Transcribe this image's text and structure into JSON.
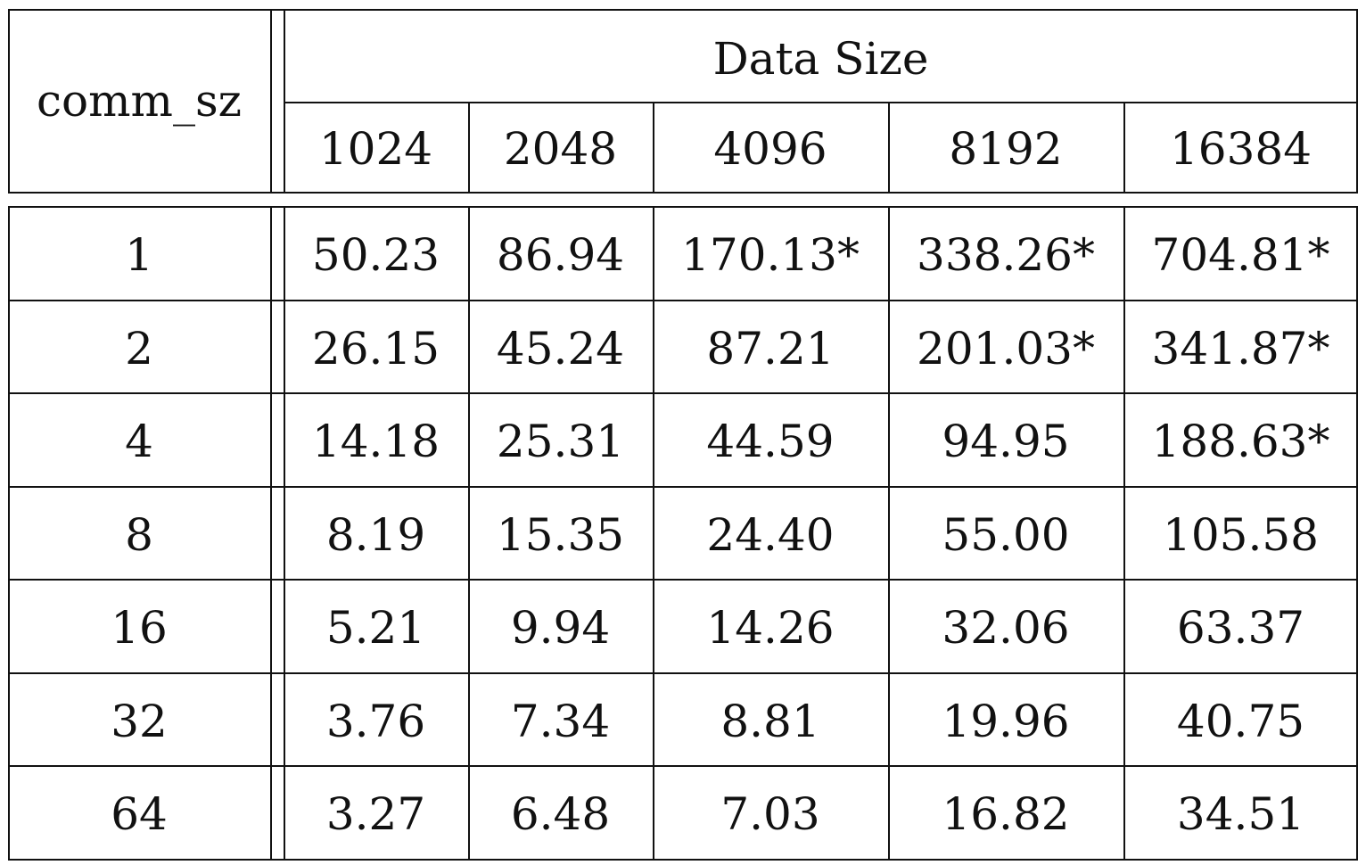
{
  "chart_data": {
    "type": "table",
    "row_header_label": "comm_sz",
    "column_group_label": "Data Size",
    "columns": [
      "1024",
      "2048",
      "4096",
      "8192",
      "16384"
    ],
    "rows": [
      {
        "comm_sz": "1",
        "values": [
          "50.23",
          "86.94",
          "170.13*",
          "338.26*",
          "704.81*"
        ]
      },
      {
        "comm_sz": "2",
        "values": [
          "26.15",
          "45.24",
          "87.21",
          "201.03*",
          "341.87*"
        ]
      },
      {
        "comm_sz": "4",
        "values": [
          "14.18",
          "25.31",
          "44.59",
          "94.95",
          "188.63*"
        ]
      },
      {
        "comm_sz": "8",
        "values": [
          "8.19",
          "15.35",
          "24.40",
          "55.00",
          "105.58"
        ]
      },
      {
        "comm_sz": "16",
        "values": [
          "5.21",
          "9.94",
          "14.26",
          "32.06",
          "63.37"
        ]
      },
      {
        "comm_sz": "32",
        "values": [
          "3.76",
          "7.34",
          "8.81",
          "19.96",
          "40.75"
        ]
      },
      {
        "comm_sz": "64",
        "values": [
          "3.27",
          "6.48",
          "7.03",
          "16.82",
          "34.51"
        ]
      }
    ]
  }
}
